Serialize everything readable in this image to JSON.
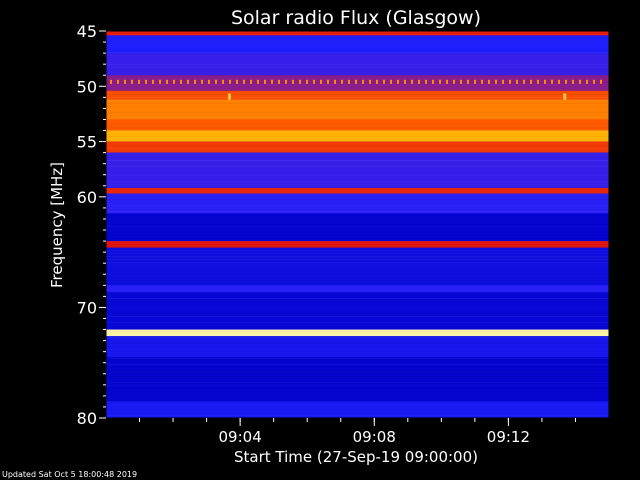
{
  "chart_data": {
    "type": "heatmap",
    "title": "Solar radio Flux (Glasgow)",
    "xlabel": "Start Time (27-Sep-19 09:00:00)",
    "ylabel": "Frequency [MHz]",
    "x_range": [
      "09:00:00",
      "09:15:00"
    ],
    "ylim": [
      45,
      80
    ],
    "y_reversed": true,
    "x_ticks": [
      "09:04",
      "09:08",
      "09:12"
    ],
    "y_ticks": [
      45,
      50,
      55,
      60,
      70,
      80
    ],
    "colormap": [
      "#00004a",
      "#0000c8",
      "#2020ff",
      "#7a1fa2",
      "#e01010",
      "#ff5500",
      "#ffb000",
      "#ffffc0"
    ],
    "background_level": 0.22,
    "bands": [
      {
        "f_start": 45.0,
        "f_end": 45.4,
        "level": 0.6
      },
      {
        "f_start": 45.4,
        "f_end": 47.0,
        "level": 0.28
      },
      {
        "f_start": 47.0,
        "f_end": 49.0,
        "level": 0.32
      },
      {
        "f_start": 49.0,
        "f_end": 50.4,
        "level": 0.45
      },
      {
        "f_start": 50.4,
        "f_end": 51.2,
        "level": 0.7
      },
      {
        "f_start": 51.2,
        "f_end": 53.0,
        "level": 0.78
      },
      {
        "f_start": 53.0,
        "f_end": 54.0,
        "level": 0.72
      },
      {
        "f_start": 54.0,
        "f_end": 55.0,
        "level": 0.86
      },
      {
        "f_start": 55.0,
        "f_end": 56.0,
        "level": 0.66
      },
      {
        "f_start": 56.0,
        "f_end": 59.2,
        "level": 0.32
      },
      {
        "f_start": 59.2,
        "f_end": 59.7,
        "level": 0.62
      },
      {
        "f_start": 59.7,
        "f_end": 61.5,
        "level": 0.3
      },
      {
        "f_start": 61.5,
        "f_end": 64.0,
        "level": 0.16
      },
      {
        "f_start": 64.0,
        "f_end": 64.6,
        "level": 0.58
      },
      {
        "f_start": 64.6,
        "f_end": 68.0,
        "level": 0.2
      },
      {
        "f_start": 68.0,
        "f_end": 68.6,
        "level": 0.3
      },
      {
        "f_start": 68.6,
        "f_end": 72.0,
        "level": 0.18
      },
      {
        "f_start": 72.0,
        "f_end": 72.6,
        "level": 0.98
      },
      {
        "f_start": 72.6,
        "f_end": 74.5,
        "level": 0.24
      },
      {
        "f_start": 74.5,
        "f_end": 78.5,
        "level": 0.16
      },
      {
        "f_start": 78.5,
        "f_end": 80.0,
        "level": 0.26
      }
    ],
    "dashed_line": {
      "frequency": 49.6,
      "level": 0.8
    },
    "spikes": [
      {
        "time": "09:03:40",
        "frequency": 51.2,
        "level": 0.9
      },
      {
        "time": "09:13:40",
        "frequency": 51.2,
        "level": 0.9
      }
    ]
  },
  "footer": {
    "updated": "Updated Sat Oct  5 18:00:48 2019"
  }
}
